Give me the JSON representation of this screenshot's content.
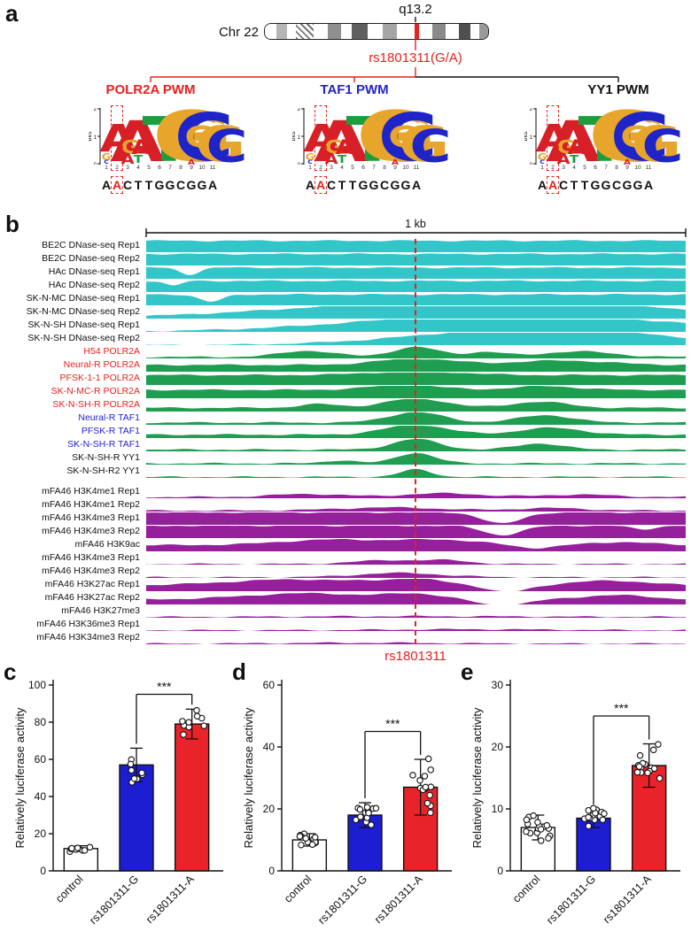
{
  "panels": {
    "a": "a",
    "b": "b",
    "c": "c",
    "d": "d",
    "e": "e"
  },
  "panel_a": {
    "chromosome_label": "Chr 22",
    "band_label": "q13.2",
    "snp_label": "rs1801311(G/A)",
    "pwm_labels": [
      {
        "text": "POLR2A PWM",
        "color": "#e8211d"
      },
      {
        "text": "TAF1 PWM",
        "color": "#2323cc"
      },
      {
        "text": "YY1 PWM",
        "color": "#111111"
      }
    ],
    "ideogram_bands": [
      {
        "w": 5,
        "c": "#ffffff"
      },
      {
        "w": 5,
        "c": "#b5b5b5"
      },
      {
        "w": 4,
        "c": "#ffffff"
      },
      {
        "w": 8,
        "c": "hatch"
      },
      {
        "w": 6,
        "c": "#ffffff"
      },
      {
        "w": 6,
        "c": "#8f8f8f"
      },
      {
        "w": 5,
        "c": "#ffffff"
      },
      {
        "w": 7,
        "c": "#5f5f5f"
      },
      {
        "w": 7,
        "c": "#ffffff"
      },
      {
        "w": 6,
        "c": "#a5a5a5"
      },
      {
        "w": 8,
        "c": "#ffffff"
      },
      {
        "w": 2,
        "c": "#e8211d"
      },
      {
        "w": 6,
        "c": "#ffffff"
      },
      {
        "w": 6,
        "c": "#8a8a8a"
      },
      {
        "w": 6,
        "c": "#ffffff"
      },
      {
        "w": 5,
        "c": "#4f4f4f"
      },
      {
        "w": 4,
        "c": "#ffffff"
      },
      {
        "w": 4,
        "c": "#9a9a9a"
      }
    ],
    "logo": {
      "ylabel": "bits",
      "yticks": [
        "2",
        "1",
        "0"
      ],
      "xticks": [
        "1",
        "2",
        "3",
        "4",
        "5",
        "6",
        "7",
        "8",
        "9",
        "10",
        "11"
      ],
      "letter_colors": {
        "A": "#d61f26",
        "C": "#1f24c8",
        "G": "#e7a52c",
        "T": "#1b9e3c"
      },
      "columns": [
        {
          "stack": [
            [
              "A",
              1.05
            ],
            [
              "G",
              0.25
            ],
            [
              "C",
              0.12
            ]
          ]
        },
        {
          "stack": [
            [
              "A",
              1.55
            ]
          ]
        },
        {
          "stack": [
            [
              "G",
              0.5
            ],
            [
              "A",
              0.38
            ]
          ]
        },
        {
          "stack": [
            [
              "A",
              0.55
            ],
            [
              "T",
              0.3
            ]
          ]
        },
        {
          "stack": [
            [
              "T",
              1.7
            ]
          ]
        },
        {
          "stack": [
            [
              "G",
              1.9
            ]
          ]
        },
        {
          "stack": [
            [
              "G",
              1.85
            ]
          ]
        },
        {
          "stack": [
            [
              "C",
              1.8
            ]
          ]
        },
        {
          "stack": [
            [
              "G",
              0.8
            ],
            [
              "C",
              0.35
            ],
            [
              "A",
              0.2
            ]
          ]
        },
        {
          "stack": [
            [
              "G",
              1.35
            ]
          ]
        },
        {
          "stack": [
            [
              "C",
              1.25
            ]
          ]
        }
      ],
      "highlight_column": 1
    },
    "sequence": "AACTTGGCGGA",
    "sequence_highlight_index": 1
  },
  "panel_b": {
    "scale_label": "1 kb",
    "snp_label": "rs1801311",
    "fill_colors": {
      "cyan": "#33c6c9",
      "green": "#1f9e51",
      "purple": "#96209c"
    },
    "tracks": [
      {
        "label": "BE2C DNase-seq Rep1",
        "lc": "#111111",
        "fc": "cyan",
        "base": 0.93,
        "peaks": []
      },
      {
        "label": "BE2C DNase-seq Rep2",
        "lc": "#111111",
        "fc": "cyan",
        "base": 0.93,
        "peaks": []
      },
      {
        "label": "HAc DNase-seq Rep1",
        "lc": "#111111",
        "fc": "cyan",
        "base": 0.9,
        "peaks": [
          {
            "c": 0.08,
            "w": 0.025,
            "h": -0.55
          }
        ]
      },
      {
        "label": "HAc DNase-seq Rep2",
        "lc": "#111111",
        "fc": "cyan",
        "base": 0.9,
        "peaks": [
          {
            "c": 0.05,
            "w": 0.02,
            "h": -0.4
          }
        ]
      },
      {
        "label": "SK-N-MC DNase-seq Rep1",
        "lc": "#111111",
        "fc": "cyan",
        "base": 0.88,
        "peaks": [
          {
            "c": 0.12,
            "w": 0.03,
            "h": -0.6
          }
        ]
      },
      {
        "label": "SK-N-MC DNase-seq Rep2",
        "lc": "#111111",
        "fc": "cyan",
        "base": 0.0,
        "peaks": [
          {
            "c": 0.62,
            "w": 0.45,
            "h": 1.5
          }
        ]
      },
      {
        "label": "SK-N-SH DNase-seq Rep1",
        "lc": "#111111",
        "fc": "cyan",
        "base": 0.0,
        "peaks": [
          {
            "c": 0.68,
            "w": 0.38,
            "h": 1.45
          }
        ]
      },
      {
        "label": "SK-N-SH DNase-seq Rep2",
        "lc": "#111111",
        "fc": "cyan",
        "base": 0.0,
        "peaks": [
          {
            "c": 0.73,
            "w": 0.3,
            "h": 1.4
          }
        ]
      },
      {
        "label": "H54 POLR2A",
        "lc": "#e8211d",
        "fc": "green",
        "base": 0.12,
        "peaks": [
          {
            "c": 0.3,
            "w": 0.07,
            "h": 0.5
          },
          {
            "c": 0.5,
            "w": 0.06,
            "h": 0.8
          },
          {
            "c": 0.63,
            "w": 0.05,
            "h": 0.4
          },
          {
            "c": 0.8,
            "w": 0.09,
            "h": 0.45
          }
        ]
      },
      {
        "label": "Neural-R POLR2A",
        "lc": "#e8211d",
        "fc": "green",
        "base": 0.55,
        "peaks": [
          {
            "c": 0.5,
            "w": 0.1,
            "h": 0.5
          },
          {
            "c": 0.77,
            "w": 0.12,
            "h": 0.35
          }
        ]
      },
      {
        "label": "PFSK-1-1 POLR2A",
        "lc": "#e8211d",
        "fc": "green",
        "base": 0.8,
        "peaks": [
          {
            "c": 0.5,
            "w": 0.12,
            "h": 0.3
          }
        ]
      },
      {
        "label": "SK-N-MC-R POLR2A",
        "lc": "#e8211d",
        "fc": "green",
        "base": 0.68,
        "peaks": [
          {
            "c": 0.48,
            "w": 0.09,
            "h": 0.4
          },
          {
            "c": 0.74,
            "w": 0.08,
            "h": 0.3
          }
        ]
      },
      {
        "label": "SK-N-SH-R POLR2A",
        "lc": "#e8211d",
        "fc": "green",
        "base": 0.3,
        "peaks": [
          {
            "c": 0.32,
            "w": 0.05,
            "h": 0.3
          },
          {
            "c": 0.5,
            "w": 0.08,
            "h": 0.75
          },
          {
            "c": 0.73,
            "w": 0.07,
            "h": 0.5
          }
        ]
      },
      {
        "label": "Neural-R TAF1",
        "lc": "#2323cc",
        "fc": "green",
        "base": 0.18,
        "peaks": [
          {
            "c": 0.5,
            "w": 0.07,
            "h": 0.85
          },
          {
            "c": 0.74,
            "w": 0.07,
            "h": 0.6
          }
        ]
      },
      {
        "label": "PFSK-R TAF1",
        "lc": "#2323cc",
        "fc": "green",
        "base": 0.28,
        "peaks": [
          {
            "c": 0.5,
            "w": 0.08,
            "h": 0.8
          },
          {
            "c": 0.75,
            "w": 0.08,
            "h": 0.55
          }
        ]
      },
      {
        "label": "SK-N-SH-R TAF1",
        "lc": "#2323cc",
        "fc": "green",
        "base": 0.14,
        "peaks": [
          {
            "c": 0.5,
            "w": 0.06,
            "h": 0.85
          },
          {
            "c": 0.73,
            "w": 0.06,
            "h": 0.5
          }
        ]
      },
      {
        "label": "SK-N-SH-R YY1",
        "lc": "#111111",
        "fc": "green",
        "base": 0.1,
        "peaks": [
          {
            "c": 0.36,
            "w": 0.04,
            "h": 0.25
          },
          {
            "c": 0.5,
            "w": 0.05,
            "h": 0.85
          }
        ]
      },
      {
        "label": "SK-N-SH-R2 YY1",
        "lc": "#111111",
        "fc": "green",
        "base": 0.08,
        "peaks": [
          {
            "c": 0.5,
            "w": 0.04,
            "h": 0.6
          }
        ]
      },
      {
        "label": "mFA46 H3K4me1 Rep1",
        "lc": "#111111",
        "fc": "purple",
        "gap": true,
        "base": 0.1,
        "peaks": [
          {
            "c": 0.3,
            "w": 0.09,
            "h": 0.25
          },
          {
            "c": 0.55,
            "w": 0.1,
            "h": 0.3
          },
          {
            "c": 0.8,
            "w": 0.09,
            "h": 0.2
          }
        ]
      },
      {
        "label": "mFA46 H3K4me1 Rep2",
        "lc": "#111111",
        "fc": "purple",
        "base": 0.08,
        "peaks": [
          {
            "c": 0.45,
            "w": 0.13,
            "h": 0.25
          },
          {
            "c": 0.75,
            "w": 0.09,
            "h": 0.2
          }
        ]
      },
      {
        "label": "mFA46 H3K4me3 Rep1",
        "lc": "#111111",
        "fc": "purple",
        "base": 1.0,
        "peaks": [
          {
            "c": 0.66,
            "w": 0.05,
            "h": -0.9
          }
        ]
      },
      {
        "label": "mFA46 H3K4me3 Rep2",
        "lc": "#111111",
        "fc": "purple",
        "base": 1.0,
        "peaks": [
          {
            "c": 0.66,
            "w": 0.05,
            "h": -0.75
          },
          {
            "c": 0.92,
            "w": 0.03,
            "h": -0.3
          }
        ]
      },
      {
        "label": "mFA46 H3K9ac",
        "lc": "#111111",
        "fc": "purple",
        "base": 0.5,
        "peaks": [
          {
            "c": 0.35,
            "w": 0.14,
            "h": 0.45
          },
          {
            "c": 0.55,
            "w": 0.1,
            "h": 0.4
          },
          {
            "c": 0.88,
            "w": 0.08,
            "h": 0.25
          },
          {
            "c": 0.72,
            "w": 0.05,
            "h": -0.25
          }
        ]
      },
      {
        "label": "mFA46 H3K4me3 Rep1",
        "lc": "#111111",
        "fc": "purple",
        "base": 0.05,
        "peaks": [
          {
            "c": 0.45,
            "w": 0.09,
            "h": 0.3
          },
          {
            "c": 0.56,
            "w": 0.06,
            "h": 0.25
          }
        ]
      },
      {
        "label": "mFA46 H3K4me3 Rep2",
        "lc": "#111111",
        "fc": "purple",
        "base": 0.05,
        "peaks": [
          {
            "c": 0.47,
            "w": 0.11,
            "h": 0.35
          }
        ]
      },
      {
        "label": "mFA46 H3K27ac Rep1",
        "lc": "#111111",
        "fc": "purple",
        "base": 0.45,
        "peaks": [
          {
            "c": 0.28,
            "w": 0.18,
            "h": 0.5
          },
          {
            "c": 0.5,
            "w": 0.08,
            "h": 0.45
          },
          {
            "c": 0.67,
            "w": 0.05,
            "h": -0.55
          },
          {
            "c": 0.86,
            "w": 0.1,
            "h": 0.4
          }
        ]
      },
      {
        "label": "mFA46 H3K27ac Rep2",
        "lc": "#111111",
        "fc": "purple",
        "base": 0.4,
        "peaks": [
          {
            "c": 0.3,
            "w": 0.16,
            "h": 0.5
          },
          {
            "c": 0.5,
            "w": 0.07,
            "h": 0.4
          },
          {
            "c": 0.66,
            "w": 0.06,
            "h": -0.5
          },
          {
            "c": 0.87,
            "w": 0.09,
            "h": 0.35
          }
        ]
      },
      {
        "label": "mFA46 H3K27me3",
        "lc": "#111111",
        "fc": "purple",
        "base": 0.06,
        "peaks": [
          {
            "c": 0.5,
            "w": 0.3,
            "h": 0.06
          }
        ]
      },
      {
        "label": "mFA46 H3K36me3 Rep1",
        "lc": "#111111",
        "fc": "purple",
        "base": 0.06,
        "peaks": [
          {
            "c": 0.6,
            "w": 0.2,
            "h": 0.08
          }
        ]
      },
      {
        "label": "mFA46 H3K34me3 Rep2",
        "lc": "#111111",
        "fc": "purple",
        "base": 0.05,
        "peaks": [
          {
            "c": 0.4,
            "w": 0.2,
            "h": 0.07
          }
        ]
      }
    ]
  },
  "chart_data": [
    {
      "type": "bar",
      "panel": "c",
      "categories": [
        "control",
        "rs1801311-G",
        "rs1801311-A"
      ],
      "values": [
        12,
        57,
        79
      ],
      "errors": [
        1.5,
        9,
        8
      ],
      "n_dots": [
        8,
        8,
        9
      ],
      "colors": [
        "#ffffff",
        "#1d1dd2",
        "#e8232a"
      ],
      "ylabel": "Relatively luciferase activity",
      "ylim": [
        0,
        100
      ],
      "yticks": [
        0,
        20,
        40,
        60,
        80,
        100
      ],
      "significance": {
        "label": "***",
        "between": [
          1,
          2
        ],
        "y": 95
      }
    },
    {
      "type": "bar",
      "panel": "d",
      "categories": [
        "control",
        "rs1801311-G",
        "rs1801311-A"
      ],
      "values": [
        10,
        18,
        27
      ],
      "errors": [
        2,
        4,
        9
      ],
      "n_dots": [
        14,
        16,
        15
      ],
      "colors": [
        "#ffffff",
        "#1d1dd2",
        "#e8232a"
      ],
      "ylabel": "Relatively luciferase activity",
      "ylim": [
        0,
        60
      ],
      "yticks": [
        0,
        20,
        40,
        60
      ],
      "significance": {
        "label": "***",
        "between": [
          1,
          2
        ],
        "y": 45
      }
    },
    {
      "type": "bar",
      "panel": "e",
      "categories": [
        "control",
        "rs1801311-G",
        "rs1801311-A"
      ],
      "values": [
        7,
        8.5,
        17
      ],
      "errors": [
        2,
        1.5,
        3.5
      ],
      "n_dots": [
        18,
        16,
        15
      ],
      "colors": [
        "#ffffff",
        "#1d1dd2",
        "#e8232a"
      ],
      "ylabel": "Relatively luciferase activity",
      "ylim": [
        0,
        30
      ],
      "yticks": [
        0,
        10,
        20,
        30
      ],
      "significance": {
        "label": "***",
        "between": [
          1,
          2
        ],
        "y": 25
      }
    }
  ]
}
